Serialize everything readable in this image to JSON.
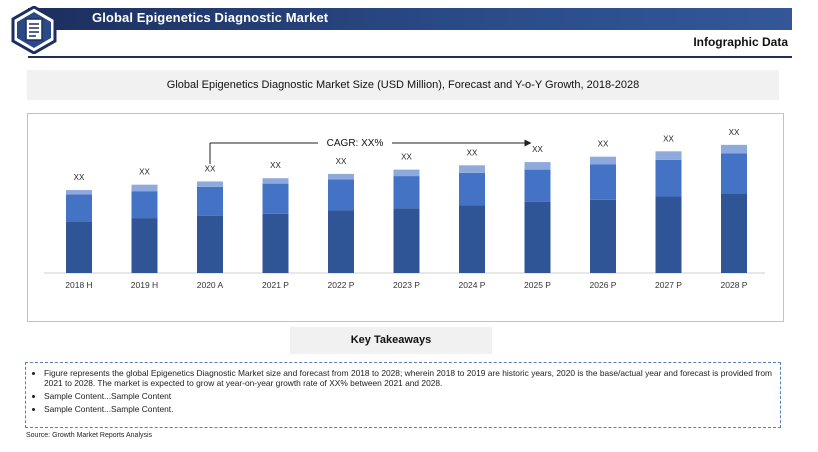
{
  "header": {
    "title": "Global Epigenetics Diagnostic Market",
    "subtitle": "Infographic Data",
    "logo_icon": "document-icon"
  },
  "chart_title": "Global Epigenetics Diagnostic Market Size (USD Million), Forecast and Y-o-Y Growth, 2018-2028",
  "cagr_label": "CAGR: XX%",
  "key_takeaways_label": "Key Takeaways",
  "notes": [
    "Figure represents the global Epigenetics Diagnostic Market size and forecast from 2018 to 2028; wherein 2018 to 2019 are historic years, 2020 is the base/actual year and forecast is provided from 2021 to 2028. The market is expected to grow at year-on-year growth rate of XX% between 2021 and 2028.",
    "Sample Content...Sample Content",
    "Sample Content...Sample Content."
  ],
  "source": "Source: Growth Market Reports Analysis",
  "colors": {
    "bottom": "#2f5597",
    "middle": "#4472c4",
    "top": "#8ea9db",
    "header": "#1c2f5e"
  },
  "chart_data": {
    "type": "bar",
    "stacked": true,
    "categories": [
      "2018 H",
      "2019 H",
      "2020 A",
      "2021 P",
      "2022 P",
      "2023 P",
      "2024 P",
      "2025 P",
      "2026 P",
      "2027 P",
      "2028 P"
    ],
    "series": [
      {
        "values": [
          48,
          51,
          53,
          55,
          58,
          60,
          63,
          66,
          68,
          71,
          74
        ]
      },
      {
        "values": [
          25,
          25,
          27,
          28,
          29,
          30,
          30,
          30,
          33,
          34,
          37
        ]
      },
      {
        "values": [
          4,
          6,
          5,
          5,
          5,
          6,
          7,
          7,
          7,
          8,
          8
        ]
      }
    ],
    "data_labels": [
      "XX",
      "XX",
      "XX",
      "XX",
      "XX",
      "XX",
      "XX",
      "XX",
      "XX",
      "XX",
      "XX"
    ],
    "ylim": [
      0,
      130
    ],
    "grid": false,
    "legend": "none"
  }
}
